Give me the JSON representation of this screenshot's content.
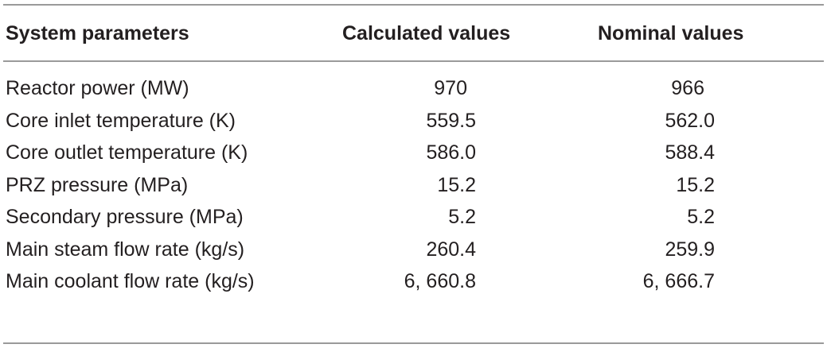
{
  "table": {
    "headers": {
      "parameter": "System parameters",
      "calculated": "Calculated values",
      "nominal": "Nominal values"
    },
    "rows": [
      {
        "parameter": "Reactor power (MW)",
        "calculated": "970",
        "nominal": "966"
      },
      {
        "parameter": "Core inlet temperature (K)",
        "calculated": "559.5",
        "nominal": "562.0"
      },
      {
        "parameter": "Core outlet temperature (K)",
        "calculated": "586.0",
        "nominal": "588.4"
      },
      {
        "parameter": "PRZ pressure (MPa)",
        "calculated": "15.2",
        "nominal": "15.2"
      },
      {
        "parameter": "Secondary pressure (MPa)",
        "calculated": "5.2",
        "nominal": "5.2"
      },
      {
        "parameter": "Main steam flow rate (kg/s)",
        "calculated": "260.4",
        "nominal": "259.9"
      },
      {
        "parameter": "Main coolant flow rate (kg/s)",
        "calculated": "6, 660.8",
        "nominal": "6, 666.7"
      }
    ]
  }
}
